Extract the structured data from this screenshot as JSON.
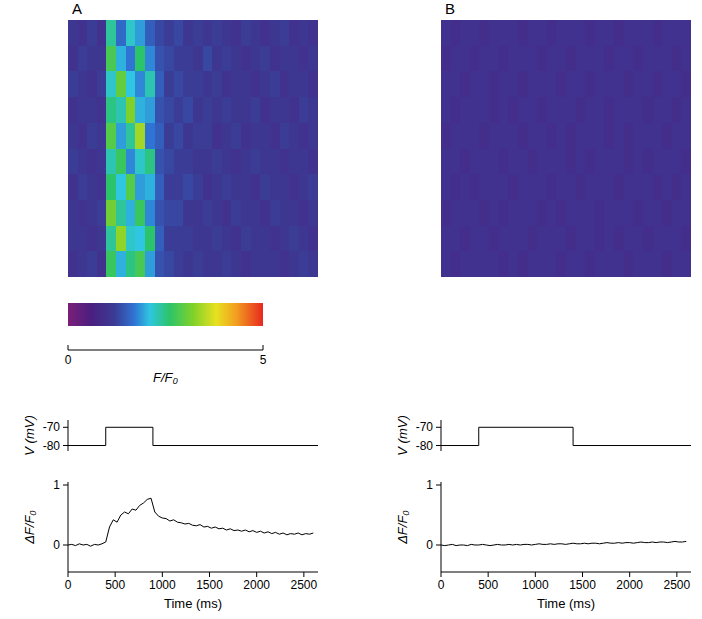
{
  "chart_data": [
    {
      "type": "heatmap",
      "title": "A",
      "cells": [
        [
          1.1,
          1.0,
          1.2,
          1.0,
          2.4,
          1.6,
          2.2,
          1.9,
          1.5,
          1.3,
          1.2,
          1.3,
          1.1,
          1.2,
          1.1,
          1.2,
          1.1,
          1.0,
          1.2,
          1.1,
          1.0,
          1.1,
          1.2,
          1.0,
          1.1,
          1.0
        ],
        [
          1.0,
          1.2,
          1.1,
          1.1,
          2.8,
          2.0,
          1.7,
          2.6,
          1.8,
          1.4,
          1.3,
          1.2,
          1.2,
          1.1,
          1.3,
          1.1,
          1.2,
          1.1,
          1.0,
          1.1,
          1.2,
          1.0,
          1.1,
          1.1,
          1.0,
          1.1
        ],
        [
          1.2,
          1.1,
          1.0,
          1.2,
          2.2,
          3.0,
          2.1,
          1.8,
          2.3,
          1.5,
          1.2,
          1.3,
          1.2,
          1.2,
          1.1,
          1.2,
          1.0,
          1.1,
          1.1,
          1.0,
          1.1,
          1.2,
          1.0,
          1.1,
          1.1,
          1.0
        ],
        [
          1.0,
          1.1,
          1.1,
          1.0,
          2.5,
          2.3,
          3.2,
          2.0,
          1.9,
          1.4,
          1.3,
          1.2,
          1.3,
          1.1,
          1.2,
          1.1,
          1.2,
          1.1,
          1.1,
          1.2,
          1.0,
          1.1,
          1.1,
          1.0,
          1.2,
          1.1
        ],
        [
          1.1,
          1.0,
          1.2,
          1.1,
          2.9,
          1.9,
          2.4,
          3.4,
          1.7,
          1.5,
          1.2,
          1.3,
          1.1,
          1.2,
          1.2,
          1.0,
          1.1,
          1.2,
          1.0,
          1.1,
          1.1,
          1.0,
          1.2,
          1.1,
          1.0,
          1.1
        ],
        [
          1.2,
          1.1,
          1.0,
          1.1,
          2.3,
          2.7,
          1.8,
          2.2,
          2.5,
          1.4,
          1.3,
          1.2,
          1.2,
          1.1,
          1.1,
          1.2,
          1.1,
          1.0,
          1.1,
          1.2,
          1.1,
          1.1,
          1.0,
          1.1,
          1.1,
          1.0
        ],
        [
          1.0,
          1.2,
          1.1,
          1.0,
          2.6,
          2.1,
          2.9,
          1.9,
          2.0,
          1.5,
          1.2,
          1.2,
          1.3,
          1.2,
          1.0,
          1.1,
          1.2,
          1.1,
          1.1,
          1.0,
          1.2,
          1.1,
          1.1,
          1.0,
          1.1,
          1.2
        ],
        [
          1.1,
          1.0,
          1.1,
          1.2,
          3.1,
          2.4,
          2.0,
          2.7,
          1.8,
          1.4,
          1.3,
          1.3,
          1.1,
          1.1,
          1.2,
          1.1,
          1.0,
          1.2,
          1.1,
          1.1,
          1.0,
          1.2,
          1.1,
          1.1,
          1.0,
          1.1
        ],
        [
          1.1,
          1.1,
          1.0,
          1.1,
          2.4,
          3.3,
          2.2,
          2.1,
          2.6,
          1.5,
          1.2,
          1.2,
          1.2,
          1.1,
          1.1,
          1.2,
          1.1,
          1.0,
          1.2,
          1.1,
          1.1,
          1.0,
          1.1,
          1.2,
          1.1,
          1.0
        ],
        [
          1.0,
          1.1,
          1.2,
          1.0,
          2.7,
          2.0,
          2.5,
          2.8,
          1.9,
          1.4,
          1.3,
          1.2,
          1.1,
          1.2,
          1.1,
          1.1,
          1.2,
          1.1,
          1.0,
          1.1,
          1.1,
          1.1,
          1.0,
          1.1,
          1.2,
          1.1
        ]
      ],
      "color_range": [
        0,
        5
      ],
      "color_ticks": [
        0,
        5
      ],
      "color_label": "F/F₀"
    },
    {
      "type": "line",
      "ylabel": "V (mV)",
      "tick_labels": "y",
      "x": [
        0,
        400,
        400,
        900,
        900,
        2650
      ],
      "values": [
        -80,
        -80,
        -70,
        -70,
        -80,
        -80
      ],
      "xlim": [
        0,
        2650
      ],
      "ylim": [
        -83,
        -66
      ],
      "yticks": [
        -70,
        -80
      ],
      "color": "#000000"
    },
    {
      "type": "line",
      "ylabel": "ΔF/F₀",
      "xlabel": "Time (ms)",
      "x": [
        0,
        40,
        80,
        120,
        160,
        200,
        240,
        280,
        320,
        360,
        400,
        440,
        480,
        520,
        560,
        600,
        640,
        680,
        720,
        760,
        800,
        840,
        880,
        920,
        960,
        1000,
        1040,
        1080,
        1120,
        1160,
        1200,
        1240,
        1280,
        1320,
        1360,
        1400,
        1440,
        1480,
        1520,
        1560,
        1600,
        1640,
        1680,
        1720,
        1760,
        1800,
        1840,
        1880,
        1920,
        1960,
        2000,
        2040,
        2080,
        2120,
        2160,
        2200,
        2240,
        2280,
        2320,
        2360,
        2400,
        2440,
        2480,
        2520,
        2560,
        2600
      ],
      "values": [
        0.0,
        0.01,
        -0.01,
        0.02,
        0.0,
        0.01,
        -0.02,
        0.01,
        0.0,
        0.02,
        0.05,
        0.3,
        0.42,
        0.38,
        0.5,
        0.55,
        0.52,
        0.6,
        0.58,
        0.66,
        0.7,
        0.76,
        0.78,
        0.55,
        0.48,
        0.45,
        0.44,
        0.4,
        0.42,
        0.38,
        0.37,
        0.35,
        0.36,
        0.33,
        0.32,
        0.34,
        0.3,
        0.31,
        0.28,
        0.3,
        0.27,
        0.28,
        0.25,
        0.27,
        0.24,
        0.25,
        0.23,
        0.25,
        0.22,
        0.24,
        0.21,
        0.23,
        0.2,
        0.22,
        0.19,
        0.21,
        0.18,
        0.2,
        0.17,
        0.19,
        0.18,
        0.2,
        0.17,
        0.19,
        0.18,
        0.2
      ],
      "xlim": [
        0,
        2650
      ],
      "xticks": [
        0,
        500,
        1000,
        1500,
        2000,
        2500
      ],
      "ylim": [
        -0.45,
        1.05
      ],
      "yticks": [
        1,
        0
      ],
      "color": "#000000"
    },
    {
      "type": "heatmap",
      "title": "B",
      "cells": [
        [
          1.0,
          0.9,
          1.0,
          1.0,
          0.9,
          1.0,
          1.0,
          1.0,
          0.9,
          1.0,
          1.0,
          0.9,
          1.0,
          1.0,
          1.0,
          0.9,
          1.0,
          1.0,
          0.9,
          1.0,
          1.0,
          1.0,
          0.9,
          1.0,
          1.0,
          1.0
        ],
        [
          0.9,
          1.0,
          1.0,
          0.9,
          1.0,
          1.0,
          0.9,
          1.0,
          1.0,
          1.0,
          0.9,
          1.0,
          1.0,
          0.9,
          1.0,
          1.0,
          1.0,
          0.9,
          1.0,
          1.0,
          0.9,
          1.0,
          1.0,
          1.0,
          0.9,
          1.0
        ],
        [
          1.0,
          1.0,
          0.9,
          1.0,
          1.0,
          0.9,
          1.0,
          1.0,
          0.9,
          1.0,
          1.0,
          1.0,
          0.9,
          1.0,
          1.0,
          0.9,
          1.0,
          1.0,
          1.0,
          0.9,
          1.0,
          1.0,
          0.9,
          1.0,
          1.0,
          0.9
        ],
        [
          1.0,
          0.9,
          1.0,
          1.0,
          1.0,
          0.9,
          1.0,
          0.9,
          1.0,
          1.0,
          0.9,
          1.0,
          1.0,
          1.0,
          0.9,
          1.0,
          1.0,
          0.9,
          1.0,
          1.0,
          1.0,
          0.9,
          1.0,
          1.0,
          0.9,
          1.0
        ],
        [
          0.9,
          1.0,
          1.0,
          1.0,
          0.9,
          1.0,
          1.0,
          1.0,
          0.9,
          1.0,
          1.0,
          0.9,
          1.0,
          0.9,
          1.0,
          1.0,
          1.0,
          0.9,
          1.0,
          0.9,
          1.0,
          1.0,
          1.0,
          0.9,
          1.0,
          1.0
        ],
        [
          1.0,
          1.0,
          0.9,
          1.0,
          1.0,
          1.0,
          0.9,
          1.0,
          1.0,
          0.9,
          1.0,
          1.0,
          1.0,
          0.9,
          1.0,
          0.9,
          1.0,
          1.0,
          1.0,
          0.9,
          1.0,
          0.9,
          1.0,
          1.0,
          1.0,
          0.9
        ],
        [
          1.0,
          0.9,
          1.0,
          0.9,
          1.0,
          1.0,
          1.0,
          0.9,
          1.0,
          1.0,
          1.0,
          0.9,
          1.0,
          1.0,
          0.9,
          1.0,
          1.0,
          1.0,
          0.9,
          1.0,
          1.0,
          1.0,
          0.9,
          1.0,
          0.9,
          1.0
        ],
        [
          0.9,
          1.0,
          1.0,
          1.0,
          0.9,
          1.0,
          0.9,
          1.0,
          1.0,
          1.0,
          0.9,
          1.0,
          0.9,
          1.0,
          1.0,
          1.0,
          0.9,
          1.0,
          1.0,
          1.0,
          0.9,
          1.0,
          1.0,
          0.9,
          1.0,
          1.0
        ],
        [
          1.0,
          1.0,
          0.9,
          1.0,
          1.0,
          0.9,
          1.0,
          1.0,
          1.0,
          0.9,
          1.0,
          1.0,
          1.0,
          0.9,
          1.0,
          1.0,
          0.9,
          1.0,
          0.9,
          1.0,
          1.0,
          0.9,
          1.0,
          1.0,
          1.0,
          0.9
        ],
        [
          1.0,
          0.9,
          1.0,
          1.0,
          1.0,
          1.0,
          0.9,
          1.0,
          0.9,
          1.0,
          1.0,
          1.0,
          0.9,
          1.0,
          1.0,
          0.9,
          1.0,
          1.0,
          1.0,
          0.9,
          1.0,
          1.0,
          1.0,
          0.9,
          1.0,
          1.0
        ]
      ]
    },
    {
      "type": "line",
      "ylabel": "V (mV)",
      "tick_labels": "y",
      "x": [
        0,
        400,
        400,
        1400,
        1400,
        2650
      ],
      "values": [
        -80,
        -80,
        -70,
        -70,
        -80,
        -80
      ],
      "xlim": [
        0,
        2650
      ],
      "ylim": [
        -83,
        -66
      ],
      "yticks": [
        -70,
        -80
      ],
      "color": "#000000"
    },
    {
      "type": "line",
      "ylabel": "ΔF/F₀",
      "xlabel": "Time (ms)",
      "x": [
        0,
        40,
        80,
        120,
        160,
        200,
        240,
        280,
        320,
        360,
        400,
        440,
        480,
        520,
        560,
        600,
        640,
        680,
        720,
        760,
        800,
        840,
        880,
        920,
        960,
        1000,
        1040,
        1080,
        1120,
        1160,
        1200,
        1240,
        1280,
        1320,
        1360,
        1400,
        1440,
        1480,
        1520,
        1560,
        1600,
        1640,
        1680,
        1720,
        1760,
        1800,
        1840,
        1880,
        1920,
        1960,
        2000,
        2040,
        2080,
        2120,
        2160,
        2200,
        2240,
        2280,
        2320,
        2360,
        2400,
        2440,
        2480,
        2520,
        2560,
        2600
      ],
      "values": [
        0.0,
        -0.01,
        0.0,
        0.01,
        -0.01,
        0.0,
        0.0,
        -0.01,
        0.01,
        0.0,
        0.0,
        0.01,
        0.0,
        -0.01,
        0.0,
        0.01,
        0.0,
        0.0,
        0.01,
        0.0,
        0.01,
        0.0,
        0.01,
        0.01,
        0.0,
        0.01,
        0.02,
        0.01,
        0.01,
        0.02,
        0.01,
        0.02,
        0.02,
        0.01,
        0.02,
        0.03,
        0.02,
        0.02,
        0.03,
        0.02,
        0.03,
        0.03,
        0.02,
        0.03,
        0.04,
        0.03,
        0.03,
        0.04,
        0.03,
        0.04,
        0.04,
        0.03,
        0.04,
        0.05,
        0.04,
        0.04,
        0.05,
        0.04,
        0.05,
        0.05,
        0.04,
        0.05,
        0.06,
        0.05,
        0.05,
        0.06
      ],
      "xlim": [
        0,
        2650
      ],
      "xticks": [
        0,
        500,
        1000,
        1500,
        2000,
        2500
      ],
      "ylim": [
        -0.45,
        1.05
      ],
      "yticks": [
        1,
        0
      ],
      "color": "#000000"
    }
  ]
}
